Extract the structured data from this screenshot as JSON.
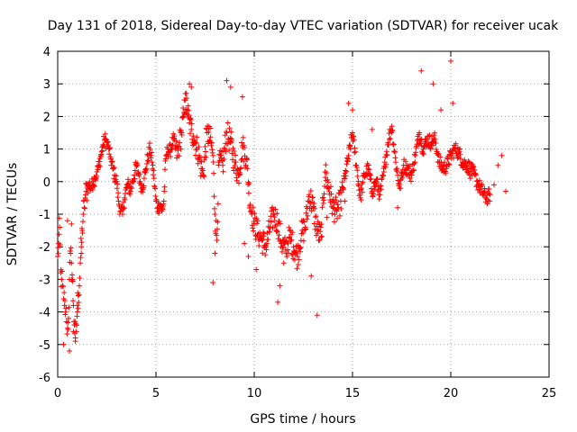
{
  "chart_data": {
    "type": "scatter",
    "title": "Day 131 of 2018, Sidereal Day-to-day VTEC variation (SDTVAR) for receiver ucak",
    "xlabel": "GPS time / hours",
    "ylabel": "SDTVAR / TECUs",
    "xlim": [
      0,
      25
    ],
    "ylim": [
      -6,
      4
    ],
    "x_ticks": [
      0,
      5,
      10,
      15,
      20,
      25
    ],
    "y_ticks": [
      -6,
      -5,
      -4,
      -3,
      -2,
      -1,
      0,
      1,
      2,
      3,
      4
    ],
    "grid": true,
    "marker": "+",
    "series": [
      {
        "name": "SDTVAR",
        "color": "#ff0000",
        "x": [
          0.0,
          0.05,
          0.1,
          0.15,
          0.2,
          0.25,
          0.3,
          0.35,
          0.4,
          0.45,
          0.5,
          0.55,
          0.6,
          0.65,
          0.7,
          0.75,
          0.8,
          0.85,
          0.9,
          0.95,
          1.0,
          1.05,
          1.1,
          1.15,
          1.2,
          1.25,
          1.3,
          1.35,
          1.4,
          1.45,
          1.5,
          1.6,
          1.7,
          1.8,
          1.9,
          2.0,
          2.1,
          2.2,
          2.3,
          2.4,
          2.5,
          2.6,
          2.7,
          2.8,
          2.9,
          3.0,
          3.1,
          3.2,
          3.3,
          3.4,
          3.5,
          3.6,
          3.7,
          3.8,
          3.9,
          4.0,
          4.1,
          4.2,
          4.3,
          4.4,
          4.5,
          4.6,
          4.7,
          4.8,
          4.9,
          5.0,
          5.1,
          5.2,
          5.3,
          5.4,
          5.5,
          5.6,
          5.7,
          5.8,
          5.9,
          6.0,
          6.1,
          6.2,
          6.3,
          6.4,
          6.5,
          6.6,
          6.7,
          6.8,
          6.9,
          7.0,
          7.1,
          7.2,
          7.3,
          7.4,
          7.6,
          7.8,
          7.9,
          8.0,
          8.1,
          8.2,
          8.4,
          8.6,
          8.8,
          9.0,
          9.2,
          9.4,
          9.6,
          9.8,
          10.0,
          10.2,
          10.4,
          10.6,
          10.8,
          11.0,
          11.2,
          11.4,
          11.6,
          11.8,
          12.0,
          12.2,
          12.4,
          12.6,
          12.8,
          13.0,
          13.2,
          13.4,
          13.6,
          13.8,
          14.0,
          14.2,
          14.4,
          14.6,
          14.8,
          15.0,
          15.2,
          15.4,
          15.6,
          15.8,
          16.0,
          16.2,
          16.4,
          16.6,
          16.8,
          17.0,
          17.2,
          17.4,
          17.6,
          17.8,
          18.0,
          18.2,
          18.4,
          18.6,
          18.8,
          19.0,
          19.2,
          19.4,
          19.6,
          19.8,
          20.0,
          20.2,
          20.4,
          20.6,
          20.8,
          21.0,
          21.2,
          21.4,
          21.6,
          21.8,
          22.0,
          22.2,
          22.4,
          22.6,
          22.8,
          0.3,
          0.6,
          0.8,
          0.9,
          1.0,
          1.2,
          0.5,
          0.7,
          6.5,
          6.7,
          6.8,
          7.9,
          8.0,
          8.6,
          8.8,
          9.4,
          9.5,
          9.7,
          10.1,
          10.5,
          11.2,
          11.3,
          11.5,
          12.9,
          13.2,
          13.7,
          14.6,
          14.8,
          18.5,
          19.1,
          20.0,
          20.1,
          15.0,
          16.0,
          17.3,
          19.5,
          21.0
        ],
        "y": [
          -2.3,
          -1.9,
          -1.4,
          -2.8,
          -3.0,
          -3.2,
          -3.6,
          -3.8,
          -4.0,
          -4.3,
          -4.5,
          -4.2,
          -3.0,
          -2.2,
          -2.5,
          -3.0,
          -3.8,
          -4.4,
          -4.8,
          -4.6,
          -3.8,
          -3.5,
          -3.2,
          -2.5,
          -2.0,
          -1.5,
          -1.0,
          -0.8,
          -0.5,
          -0.3,
          -0.2,
          -0.1,
          -0.2,
          0.0,
          0.1,
          0.3,
          0.5,
          0.8,
          1.1,
          1.3,
          1.2,
          1.0,
          0.7,
          0.4,
          0.2,
          0.0,
          -0.6,
          -0.9,
          -1.0,
          -0.5,
          -0.2,
          -0.1,
          -0.3,
          0.0,
          0.2,
          0.5,
          0.3,
          0.0,
          -0.2,
          0.1,
          0.4,
          0.8,
          1.0,
          0.6,
          0.1,
          -0.6,
          -0.8,
          -0.7,
          -0.9,
          -0.6,
          0.7,
          1.0,
          0.9,
          1.1,
          1.3,
          1.0,
          0.8,
          1.2,
          1.5,
          2.0,
          2.5,
          2.2,
          1.8,
          1.6,
          1.4,
          1.2,
          1.0,
          0.8,
          0.4,
          0.2,
          1.5,
          1.2,
          0.8,
          -1.0,
          -1.8,
          0.6,
          0.5,
          1.5,
          1.2,
          0.6,
          0.2,
          1.1,
          0.7,
          -0.7,
          -1.3,
          -1.6,
          -1.8,
          -2.0,
          -1.4,
          -1.0,
          -1.3,
          -1.9,
          -2.1,
          -1.7,
          -2.0,
          -2.3,
          -1.6,
          -1.4,
          -0.4,
          -0.8,
          -1.5,
          -1.7,
          0.3,
          -0.2,
          -0.8,
          -0.9,
          -0.6,
          0.1,
          0.8,
          1.5,
          0.5,
          -0.5,
          0.2,
          0.4,
          -0.3,
          0.0,
          -0.4,
          0.3,
          1.2,
          1.7,
          0.6,
          -0.2,
          0.5,
          0.4,
          0.2,
          0.8,
          1.5,
          1.0,
          1.3,
          1.2,
          1.3,
          0.6,
          0.4,
          0.5,
          0.8,
          1.0,
          0.9,
          0.6,
          0.5,
          0.4,
          0.2,
          -0.1,
          -0.3,
          -0.5,
          -0.4,
          -0.1,
          0.5,
          0.8,
          -0.3,
          -5.0,
          -5.2,
          -4.6,
          -4.9,
          -4.0,
          -2.2,
          -1.2,
          -1.3,
          2.7,
          3.0,
          2.9,
          -3.1,
          -2.2,
          3.1,
          2.9,
          2.6,
          -1.9,
          -2.3,
          -2.7,
          -2.0,
          -3.7,
          -3.2,
          -2.5,
          -2.9,
          -4.1,
          -1.1,
          -0.6,
          2.4,
          3.4,
          3.0,
          3.7,
          2.4,
          2.2,
          1.6,
          -0.8,
          2.2,
          0.1
        ]
      }
    ]
  }
}
